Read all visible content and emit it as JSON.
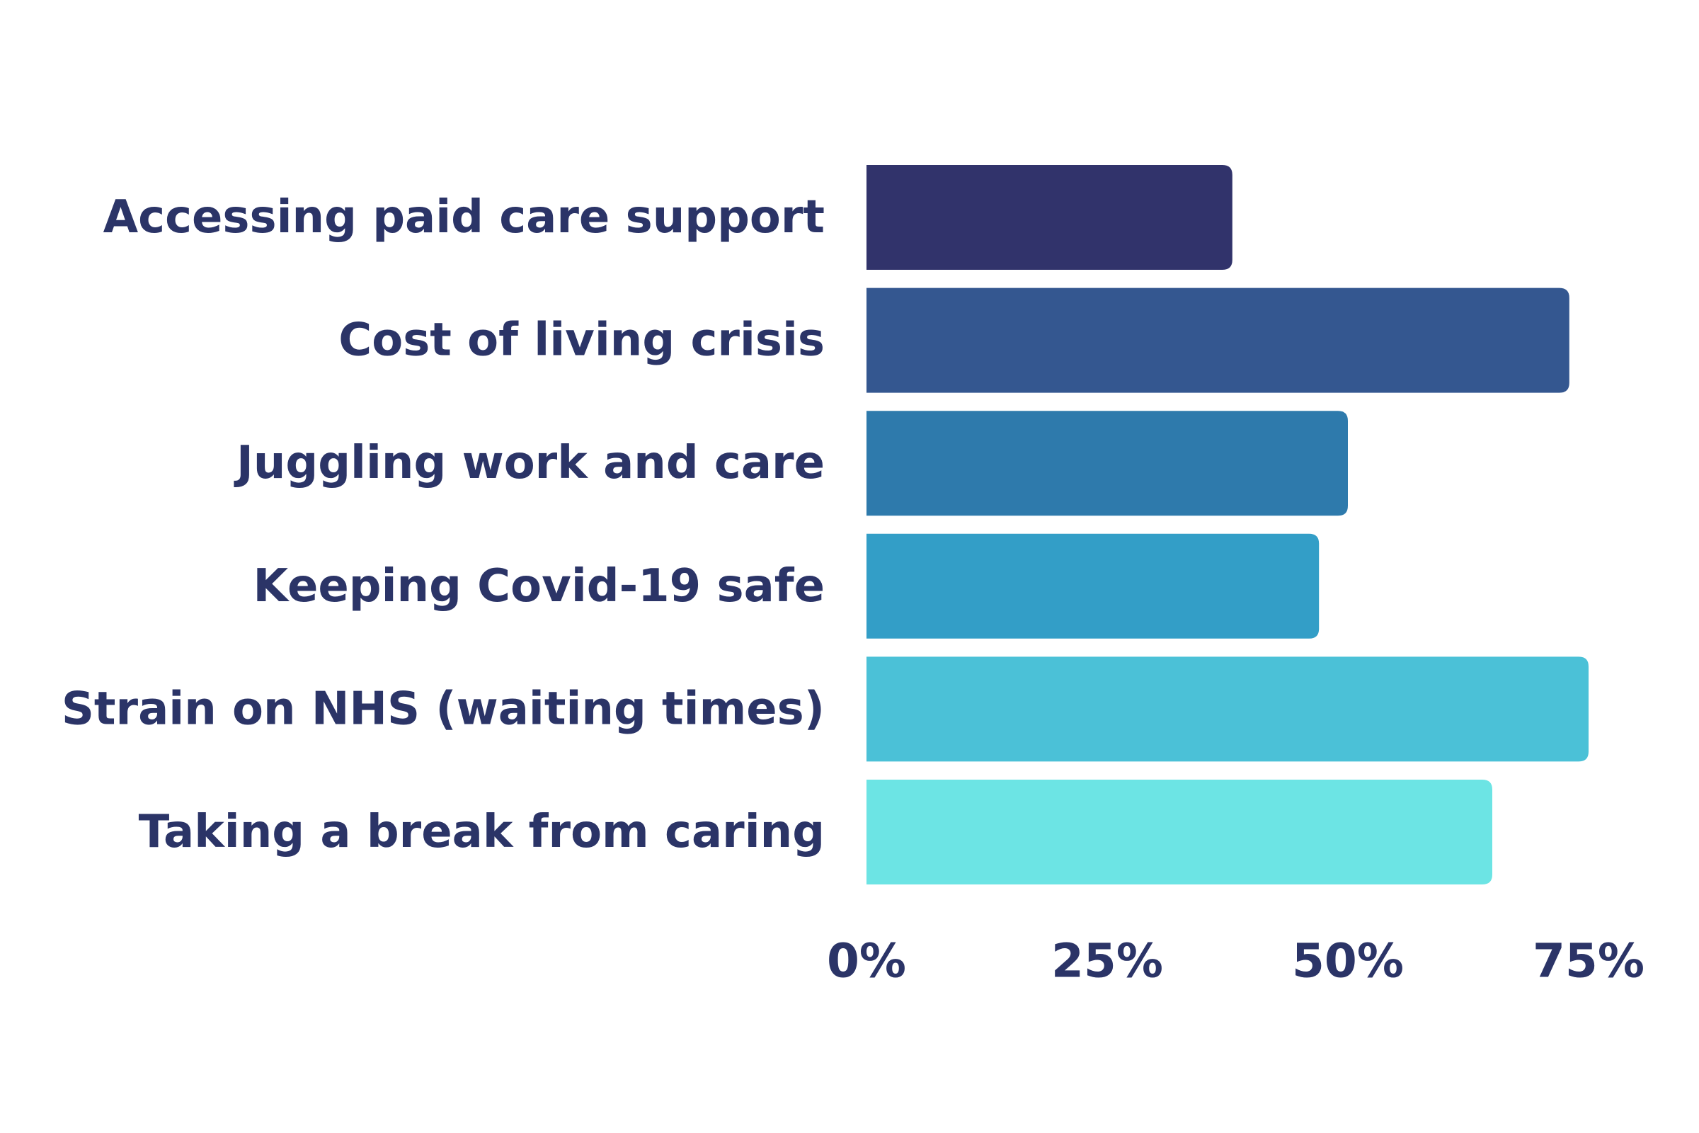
{
  "chart_data": {
    "type": "bar",
    "orientation": "horizontal",
    "categories": [
      "Accessing paid care support",
      "Cost of living crisis",
      "Juggling work and care",
      "Keeping Covid-19 safe",
      "Strain on NHS (waiting times)",
      "Taking a break from caring"
    ],
    "values": [
      38,
      73,
      50,
      47,
      75,
      65
    ],
    "colors": [
      "#31336b",
      "#345790",
      "#2e7aac",
      "#339ec7",
      "#4bc1d7",
      "#6ce4e4"
    ],
    "xlim": [
      0,
      80
    ],
    "xticks": [
      0,
      25,
      50,
      75
    ],
    "xtick_labels": [
      "0%",
      "25%",
      "50%",
      "75%"
    ],
    "grid": false,
    "legend": "none"
  }
}
